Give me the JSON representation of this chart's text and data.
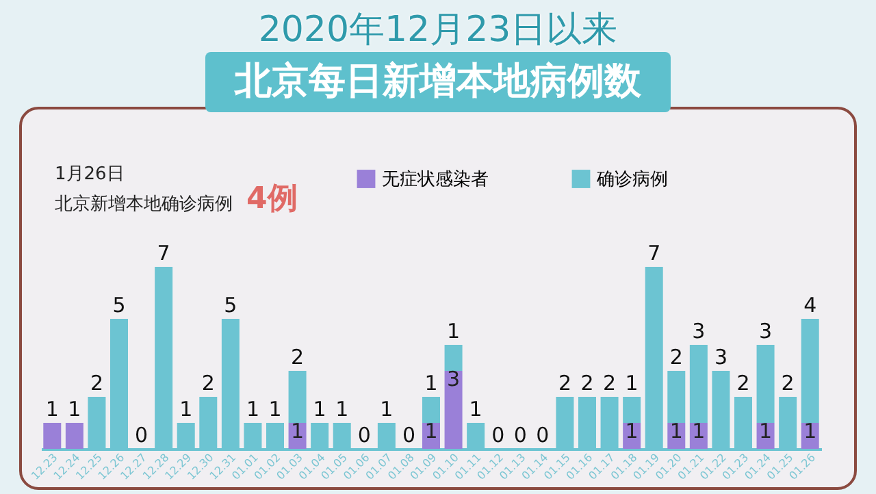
{
  "chart_data": {
    "type": "bar",
    "title": "2020年12月23日以来",
    "subtitle": "北京每日新增本地病例数",
    "annotations": [
      "1月26日",
      "北京新增本地确诊病例",
      "4例"
    ],
    "categories": [
      "12.23",
      "12.24",
      "12.25",
      "12.26",
      "12.27",
      "12.28",
      "12.29",
      "12.30",
      "12.31",
      "01.01",
      "01.02",
      "01.03",
      "01.04",
      "01.05",
      "01.06",
      "01.07",
      "01.08",
      "01.09",
      "01.10",
      "01.11",
      "01.12",
      "01.13",
      "01.14",
      "01.15",
      "01.16",
      "01.17",
      "01.18",
      "01.19",
      "01.20",
      "01.21",
      "01.22",
      "01.23",
      "01.24",
      "01.25",
      "01.26"
    ],
    "stacked": true,
    "legend": "top",
    "grid": false,
    "series": [
      {
        "name": "无症状感染者",
        "color": "#9a80d8",
        "values": [
          1,
          1,
          0,
          0,
          0,
          0,
          0,
          0,
          0,
          0,
          0,
          1,
          0,
          0,
          0,
          0,
          0,
          1,
          3,
          0,
          0,
          0,
          0,
          0,
          0,
          0,
          1,
          0,
          1,
          1,
          0,
          0,
          1,
          0,
          1
        ],
        "value_labels": [
          "1",
          "1",
          null,
          null,
          null,
          null,
          null,
          null,
          null,
          null,
          null,
          "1",
          null,
          null,
          null,
          null,
          null,
          "1",
          "3",
          null,
          null,
          null,
          null,
          null,
          null,
          null,
          "1",
          null,
          "1",
          "1",
          null,
          null,
          "1",
          null,
          "1"
        ]
      },
      {
        "name": "确诊病例",
        "color": "#6cc4d2",
        "values": [
          0,
          0,
          2,
          5,
          0,
          7,
          1,
          2,
          5,
          1,
          1,
          2,
          1,
          1,
          0,
          1,
          0,
          1,
          1,
          1,
          0,
          0,
          0,
          2,
          2,
          2,
          1,
          7,
          2,
          3,
          3,
          2,
          3,
          2,
          4
        ],
        "value_labels": [
          null,
          null,
          "2",
          "5",
          "0",
          "7",
          "1",
          "2",
          "5",
          "1",
          "1",
          "2",
          "1",
          "1",
          "0",
          "1",
          "0",
          "1",
          "1",
          "1",
          "0",
          "0",
          "0",
          "2",
          "2",
          "2",
          "1",
          "7",
          "2",
          "3",
          "3",
          "2",
          "3",
          "2",
          "4"
        ]
      }
    ]
  }
}
